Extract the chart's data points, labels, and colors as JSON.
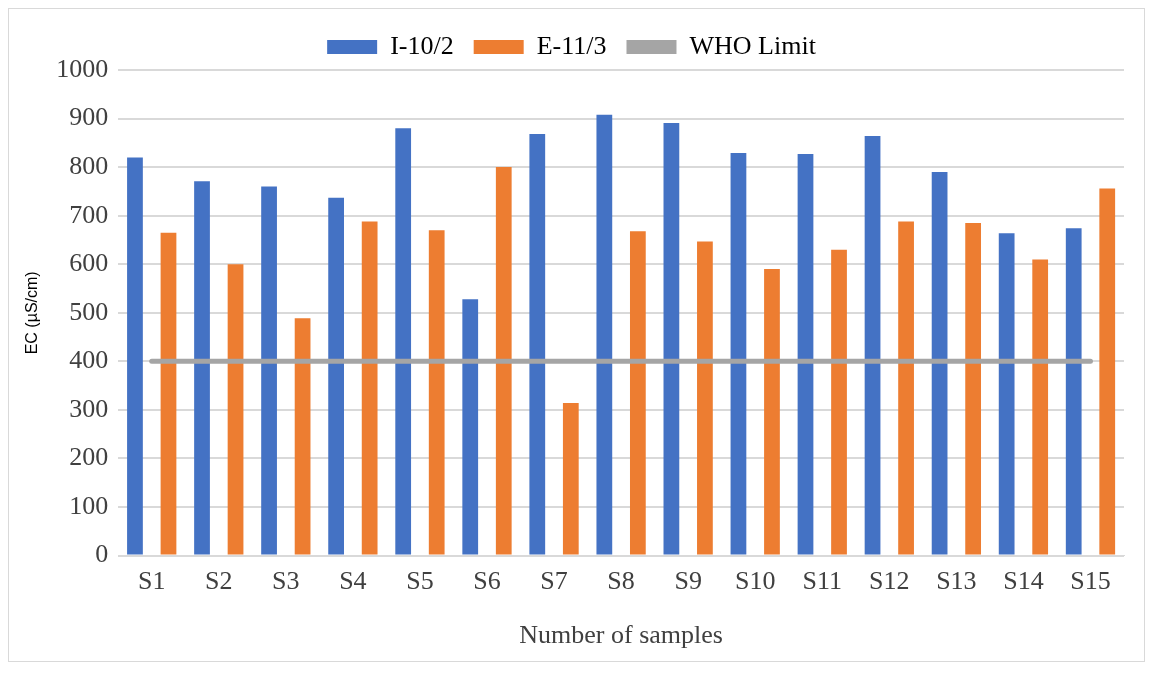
{
  "chart_data": {
    "type": "bar",
    "xlabel": "Number of samples",
    "ylabel": "EC (µS/cm)",
    "categories": [
      "S1",
      "S2",
      "S3",
      "S4",
      "S5",
      "S6",
      "S7",
      "S8",
      "S9",
      "S10",
      "S11",
      "S12",
      "S13",
      "S14",
      "S15"
    ],
    "series": [
      {
        "name": "I-10/2",
        "color": "#4472c4",
        "values": [
          820,
          771,
          760,
          737,
          880,
          528,
          868,
          908,
          891,
          829,
          827,
          864,
          790,
          664,
          674
        ]
      },
      {
        "name": "E-11/3",
        "color": "#ed7d31",
        "values": [
          665,
          600,
          489,
          688,
          670,
          800,
          314,
          668,
          647,
          590,
          630,
          688,
          685,
          610,
          756
        ]
      },
      {
        "name": "WHO Limit",
        "type": "line",
        "color": "#a5a5a5",
        "marker": "none",
        "values": [
          400,
          400,
          400,
          400,
          400,
          400,
          400,
          400,
          400,
          400,
          400,
          400,
          400,
          400,
          400
        ]
      }
    ],
    "ylim": [
      0,
      1000
    ],
    "yticks": [
      0,
      100,
      200,
      300,
      400,
      500,
      600,
      700,
      800,
      900,
      1000
    ],
    "grid": "y",
    "legend": "top"
  }
}
